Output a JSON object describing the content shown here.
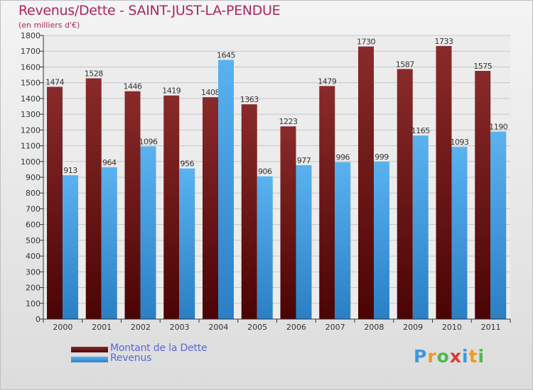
{
  "header": {
    "title": "Revenus/Dette - SAINT-JUST-LA-PENDUE",
    "subtitle": "(en milliers d'€)"
  },
  "legend": [
    {
      "label": "Montant de la Dette",
      "color": "#7a1a1a"
    },
    {
      "label": "Revenus",
      "color": "#4aa3e8"
    }
  ],
  "logo": {
    "text": "Proxiti",
    "letters": [
      {
        "ch": "P",
        "color": "#3a9ad9"
      },
      {
        "ch": "r",
        "color": "#f29a1f"
      },
      {
        "ch": "o",
        "color": "#4fb848"
      },
      {
        "ch": "x",
        "color": "#d93a3a"
      },
      {
        "ch": "i",
        "color": "#3a9ad9"
      },
      {
        "ch": "t",
        "color": "#f29a1f"
      },
      {
        "ch": "i",
        "color": "#4fb848"
      }
    ]
  },
  "chart_data": {
    "type": "bar",
    "title": "Revenus/Dette - SAINT-JUST-LA-PENDUE",
    "subtitle": "(en milliers d'€)",
    "categories": [
      "2000",
      "2001",
      "2002",
      "2003",
      "2004",
      "2005",
      "2006",
      "2007",
      "2008",
      "2009",
      "2010",
      "2011"
    ],
    "series": [
      {
        "name": "Montant de la Dette",
        "color": "#7a1a1a",
        "values": [
          1474,
          1528,
          1446,
          1419,
          1408,
          1363,
          1223,
          1479,
          1730,
          1587,
          1733,
          1575
        ],
        "labels": [
          "1474",
          "1528",
          "1446",
          "1419",
          "1408",
          "1363",
          "1223",
          "1479",
          "1730",
          "1587",
          "1733",
          "1575"
        ]
      },
      {
        "name": "Revenus",
        "color": "#4aa3e8",
        "values": [
          913,
          964,
          1096,
          956,
          1645,
          906,
          977,
          996,
          999,
          1165,
          1093,
          1190
        ],
        "labels": [
          "913",
          "964",
          "1096",
          "956",
          "1645",
          "906",
          "977",
          "996",
          "999",
          "1165",
          "1093",
          "1190"
        ]
      }
    ],
    "ylim": [
      0,
      1800
    ],
    "yticks": [
      0,
      100,
      200,
      300,
      400,
      500,
      600,
      700,
      800,
      900,
      1000,
      1100,
      1200,
      1300,
      1400,
      1500,
      1600,
      1700,
      1800
    ],
    "grid": true,
    "legend_position": "bottom-left"
  }
}
